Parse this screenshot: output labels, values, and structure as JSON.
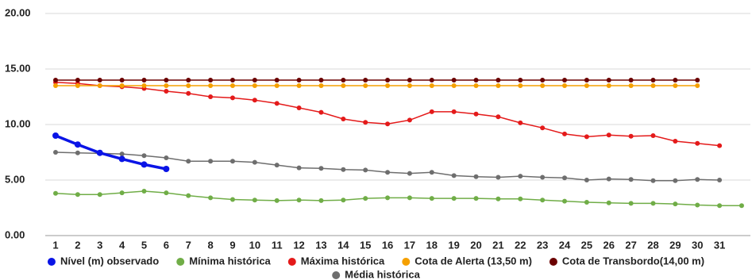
{
  "chart_data": {
    "type": "line",
    "categories": [
      "1",
      "2",
      "3",
      "4",
      "5",
      "6",
      "7",
      "8",
      "9",
      "10",
      "11",
      "12",
      "13",
      "14",
      "15",
      "16",
      "17",
      "18",
      "19",
      "20",
      "21",
      "22",
      "23",
      "24",
      "25",
      "26",
      "27",
      "28",
      "29",
      "30",
      "31",
      null
    ],
    "ylim": [
      0,
      20
    ],
    "yticks": [
      {
        "value": 0,
        "label": "0.00"
      },
      {
        "value": 5,
        "label": "5.00"
      },
      {
        "value": 10,
        "label": "10.00"
      },
      {
        "value": 15,
        "label": "15.00"
      },
      {
        "value": 20,
        "label": "20.00"
      }
    ],
    "grid": true,
    "legend": "bottom",
    "series": [
      {
        "name": "Nível (m) observado",
        "color": "#0a14e6",
        "values": [
          9.0,
          8.2,
          7.45,
          6.9,
          6.4,
          6.0,
          null,
          null,
          null,
          null,
          null,
          null,
          null,
          null,
          null,
          null,
          null,
          null,
          null,
          null,
          null,
          null,
          null,
          null,
          null,
          null,
          null,
          null,
          null,
          null,
          null,
          null
        ]
      },
      {
        "name": "Mínima histórica",
        "color": "#70ad47",
        "values": [
          3.8,
          3.7,
          3.7,
          3.85,
          4.0,
          3.85,
          3.6,
          3.4,
          3.25,
          3.2,
          3.15,
          3.2,
          3.15,
          3.2,
          3.35,
          3.4,
          3.4,
          3.35,
          3.35,
          3.35,
          3.3,
          3.3,
          3.2,
          3.1,
          3.0,
          2.95,
          2.9,
          2.9,
          2.85,
          2.75,
          2.7,
          2.7
        ]
      },
      {
        "name": "Máxima histórica",
        "color": "#e41a1a",
        "values": [
          13.8,
          13.7,
          13.5,
          13.4,
          13.25,
          13.0,
          12.8,
          12.5,
          12.4,
          12.2,
          11.9,
          11.5,
          11.1,
          10.5,
          10.2,
          10.05,
          10.4,
          11.15,
          11.15,
          10.95,
          10.7,
          10.15,
          9.7,
          9.15,
          8.9,
          9.05,
          8.95,
          9.0,
          8.5,
          8.3,
          8.1,
          null
        ]
      },
      {
        "name": "Cota de Alerta (13,50 m)",
        "color": "#f5a000",
        "values": [
          13.5,
          13.5,
          13.5,
          13.5,
          13.5,
          13.5,
          13.5,
          13.5,
          13.5,
          13.5,
          13.5,
          13.5,
          13.5,
          13.5,
          13.5,
          13.5,
          13.5,
          13.5,
          13.5,
          13.5,
          13.5,
          13.5,
          13.5,
          13.5,
          13.5,
          13.5,
          13.5,
          13.5,
          13.5,
          13.5,
          null,
          null
        ]
      },
      {
        "name": "Cota de Transbordo(14,00 m)",
        "color": "#6b0000",
        "values": [
          14.0,
          14.0,
          14.0,
          14.0,
          14.0,
          14.0,
          14.0,
          14.0,
          14.0,
          14.0,
          14.0,
          14.0,
          14.0,
          14.0,
          14.0,
          14.0,
          14.0,
          14.0,
          14.0,
          14.0,
          14.0,
          14.0,
          14.0,
          14.0,
          14.0,
          14.0,
          14.0,
          14.0,
          14.0,
          14.0,
          null,
          null
        ]
      },
      {
        "name": "Média histórica",
        "color": "#6e6e6e",
        "values": [
          7.5,
          7.45,
          7.4,
          7.35,
          7.2,
          7.0,
          6.7,
          6.7,
          6.7,
          6.6,
          6.35,
          6.1,
          6.05,
          5.95,
          5.9,
          5.7,
          5.6,
          5.7,
          5.4,
          5.3,
          5.25,
          5.35,
          5.25,
          5.2,
          5.0,
          5.1,
          5.05,
          4.95,
          4.95,
          5.05,
          5.0,
          null
        ]
      }
    ]
  }
}
